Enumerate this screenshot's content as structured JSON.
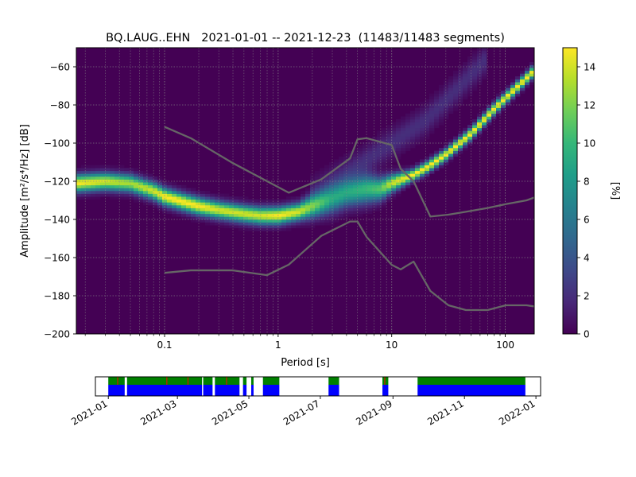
{
  "chart_data": [
    {
      "type": "heatmap",
      "title": "BQ.LAUG..EHN   2021-01-01 -- 2021-12-23  (11483/11483 segments)",
      "xlabel": "Period [s]",
      "ylabel": "Amplitude [m²/s⁴/Hz] [dB]",
      "x_scale": "log",
      "xlim": [
        0.0167,
        180
      ],
      "ylim": [
        -200,
        -50
      ],
      "x_ticks": [
        {
          "value": 0.1,
          "label": "0.1"
        },
        {
          "value": 1,
          "label": "1"
        },
        {
          "value": 10,
          "label": "10"
        },
        {
          "value": 100,
          "label": "100"
        }
      ],
      "y_ticks": [
        {
          "value": -60,
          "label": "−60"
        },
        {
          "value": -80,
          "label": "−80"
        },
        {
          "value": -100,
          "label": "−100"
        },
        {
          "value": -120,
          "label": "−120"
        },
        {
          "value": -140,
          "label": "−140"
        },
        {
          "value": -160,
          "label": "−160"
        },
        {
          "value": -180,
          "label": "−180"
        },
        {
          "value": -200,
          "label": "−200"
        }
      ],
      "grid": true,
      "colorbar": {
        "label": "[%]",
        "range": [
          0,
          15
        ],
        "ticks": [
          {
            "value": 0,
            "label": "0"
          },
          {
            "value": 2,
            "label": "2"
          },
          {
            "value": 4,
            "label": "4"
          },
          {
            "value": 6,
            "label": "6"
          },
          {
            "value": 8,
            "label": "8"
          },
          {
            "value": 10,
            "label": "10"
          },
          {
            "value": 12,
            "label": "12"
          },
          {
            "value": 14,
            "label": "14"
          }
        ],
        "colors": [
          "#440154",
          "#482878",
          "#3e4989",
          "#31688e",
          "#26828e",
          "#1f9e89",
          "#35b779",
          "#6ece58",
          "#b5de2b",
          "#fde725"
        ]
      },
      "background_color": "#440154",
      "psd_ridge": [
        {
          "period": 0.0167,
          "db": -121,
          "width": 3,
          "pct": 15
        },
        {
          "period": 0.03,
          "db": -120,
          "width": 3,
          "pct": 14
        },
        {
          "period": 0.05,
          "db": -121,
          "width": 3,
          "pct": 13
        },
        {
          "period": 0.08,
          "db": -125,
          "width": 3,
          "pct": 14
        },
        {
          "period": 0.1,
          "db": -128,
          "width": 3,
          "pct": 15
        },
        {
          "period": 0.15,
          "db": -131,
          "width": 3,
          "pct": 15
        },
        {
          "period": 0.2,
          "db": -133,
          "width": 3,
          "pct": 15
        },
        {
          "period": 0.3,
          "db": -135,
          "width": 3,
          "pct": 14
        },
        {
          "period": 0.5,
          "db": -137,
          "width": 3,
          "pct": 14
        },
        {
          "period": 0.7,
          "db": -138,
          "width": 3,
          "pct": 14
        },
        {
          "period": 1,
          "db": -138,
          "width": 3,
          "pct": 15
        },
        {
          "period": 1.5,
          "db": -136,
          "width": 3,
          "pct": 14
        },
        {
          "period": 2,
          "db": -133,
          "width": 4,
          "pct": 12
        },
        {
          "period": 3,
          "db": -129,
          "width": 5,
          "pct": 9
        },
        {
          "period": 4,
          "db": -126,
          "width": 5,
          "pct": 9
        },
        {
          "period": 6,
          "db": -124,
          "width": 5,
          "pct": 10
        },
        {
          "period": 8,
          "db": -124,
          "width": 4,
          "pct": 11
        },
        {
          "period": 10,
          "db": -121,
          "width": 3,
          "pct": 14
        },
        {
          "period": 15,
          "db": -117,
          "width": 2,
          "pct": 15
        },
        {
          "period": 20,
          "db": -113,
          "width": 2,
          "pct": 15
        },
        {
          "period": 30,
          "db": -106,
          "width": 2,
          "pct": 15
        },
        {
          "period": 50,
          "db": -95,
          "width": 2,
          "pct": 15
        },
        {
          "period": 80,
          "db": -82,
          "width": 2,
          "pct": 15
        },
        {
          "period": 120,
          "db": -72,
          "width": 2,
          "pct": 15
        },
        {
          "period": 180,
          "db": -62,
          "width": 2,
          "pct": 15
        }
      ],
      "psd_faint_band": [
        {
          "period": 2,
          "db": -125,
          "pct": 1
        },
        {
          "period": 5,
          "db": -112,
          "pct": 2
        },
        {
          "period": 10,
          "db": -100,
          "pct": 2
        },
        {
          "period": 20,
          "db": -88,
          "pct": 2
        },
        {
          "period": 40,
          "db": -70,
          "pct": 2
        },
        {
          "period": 70,
          "db": -55,
          "pct": 2
        }
      ],
      "series": [
        {
          "points": [
            [
              0.1,
              -91.5
            ],
            [
              0.17,
              -97.4
            ],
            [
              0.4,
              -110.5
            ],
            [
              0.8,
              -120
            ],
            [
              1.24,
              -126
            ],
            [
              2.4,
              -119
            ],
            [
              4.3,
              -108
            ],
            [
              5,
              -98
            ],
            [
              6,
              -97.4
            ],
            [
              10,
              -101
            ],
            [
              12,
              -113.5
            ],
            [
              15.6,
              -120
            ],
            [
              21.9,
              -138.5
            ],
            [
              31.6,
              -137.5
            ],
            [
              45,
              -136
            ],
            [
              70,
              -134
            ],
            [
              101,
              -132
            ],
            [
              154,
              -130
            ],
            [
              180,
              -128.5
            ]
          ],
          "color": "#666666"
        },
        {
          "points": [
            [
              0.1,
              -168
            ],
            [
              0.17,
              -166.7
            ],
            [
              0.4,
              -166.7
            ],
            [
              0.8,
              -169.2
            ],
            [
              1.24,
              -163.7
            ],
            [
              2.4,
              -148.6
            ],
            [
              4.3,
              -141.1
            ],
            [
              5,
              -141.1
            ],
            [
              6,
              -149.1
            ],
            [
              10,
              -163.8
            ],
            [
              12,
              -166.2
            ],
            [
              15.6,
              -162.1
            ],
            [
              21.9,
              -177.5
            ],
            [
              31.6,
              -185
            ],
            [
              45,
              -187.5
            ],
            [
              70,
              -187.5
            ],
            [
              101,
              -185
            ],
            [
              154,
              -185
            ],
            [
              180,
              -185.6
            ]
          ],
          "color": "#666666"
        }
      ]
    },
    {
      "type": "bar",
      "x_ticks": [
        {
          "value": "2021-01-01",
          "label": "2021-01"
        },
        {
          "value": "2021-03-01",
          "label": "2021-03"
        },
        {
          "value": "2021-05-01",
          "label": "2021-05"
        },
        {
          "value": "2021-07-01",
          "label": "2021-07"
        },
        {
          "value": "2021-09-01",
          "label": "2021-09"
        },
        {
          "value": "2021-11-01",
          "label": "2021-11"
        },
        {
          "value": "2022-01-01",
          "label": "2022-01"
        }
      ],
      "xlim": [
        "2020-12-21",
        "2022-01-05"
      ],
      "upper_color": "#008000",
      "lower_color": "#0000ff",
      "gap_color": "#ff0000",
      "segments": [
        [
          "2021-01-01",
          "2021-01-15"
        ],
        [
          "2021-01-17",
          "2021-03-22"
        ],
        [
          "2021-03-23",
          "2021-03-31"
        ],
        [
          "2021-04-02",
          "2021-04-23"
        ],
        [
          "2021-04-26",
          "2021-04-29"
        ],
        [
          "2021-05-03",
          "2021-05-05"
        ],
        [
          "2021-05-13",
          "2021-05-27"
        ],
        [
          "2021-07-08",
          "2021-07-17"
        ],
        [
          "2021-08-23",
          "2021-08-28"
        ],
        [
          "2021-09-22",
          "2021-12-23"
        ]
      ],
      "gap_marks": [
        "2021-01-09",
        "2021-02-20",
        "2021-03-10",
        "2021-04-12",
        "2021-08-25"
      ]
    }
  ]
}
